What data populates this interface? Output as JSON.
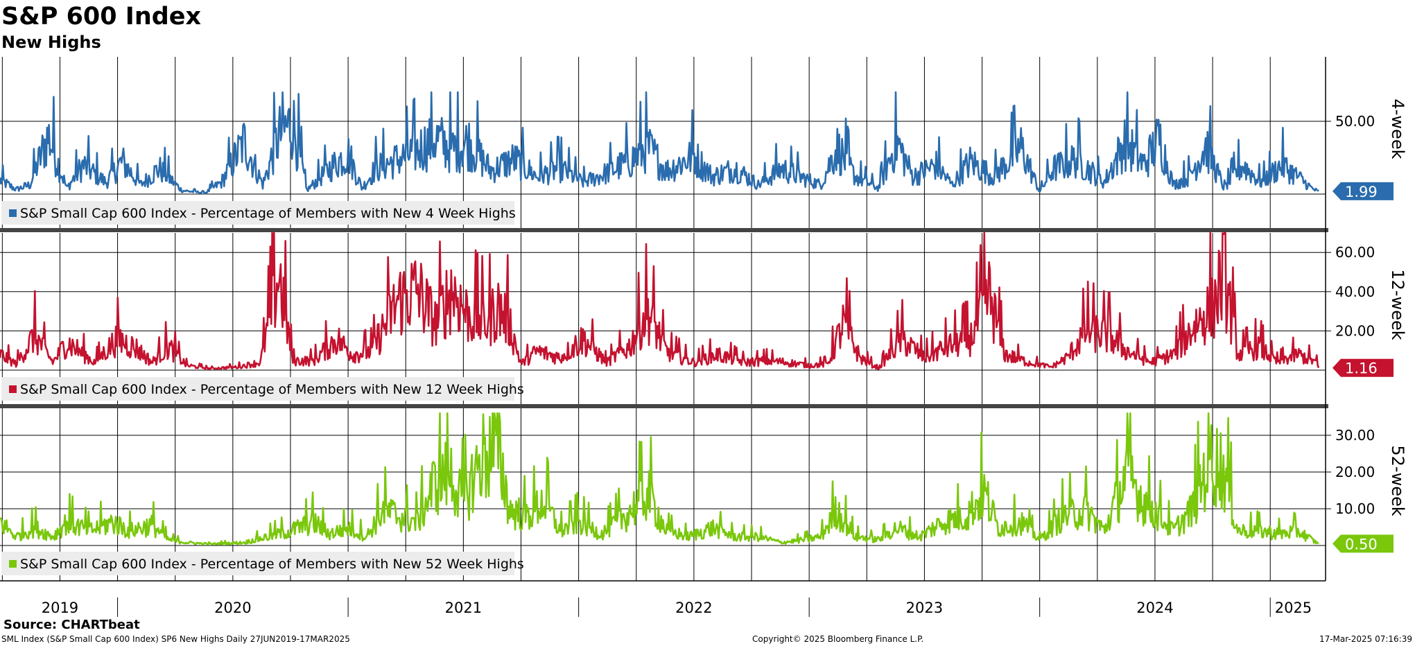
{
  "header": {
    "title": "S&P 600 Index",
    "subtitle": "New Highs"
  },
  "footer": {
    "source": "Source: CHARTbeat",
    "left": "SML Index (S&P Small Cap 600 Index) SP6 New Highs  Daily 27JUN2019-17MAR2025",
    "center": "Copyright© 2025 Bloomberg Finance L.P.",
    "right": "17-Mar-2025 07:16:39"
  },
  "chart_data": [
    {
      "type": "line",
      "panel_label": "4-week",
      "legend": "S&P Small Cap 600 Index - Percentage of Members with New 4 Week Highs",
      "color": "#2a6cad",
      "last_value": 1.99,
      "last_value_label": "1.99",
      "ylim": [
        0,
        70
      ],
      "ticks": [
        50
      ],
      "tick_labels": [
        "50.00"
      ],
      "x_range": [
        2019.49,
        2025.21
      ],
      "keypoints": [
        [
          2019.49,
          12
        ],
        [
          2019.56,
          4
        ],
        [
          2019.62,
          8
        ],
        [
          2019.7,
          50
        ],
        [
          2019.78,
          5
        ],
        [
          2019.85,
          25
        ],
        [
          2019.95,
          10
        ],
        [
          2020.02,
          28
        ],
        [
          2020.1,
          8
        ],
        [
          2020.18,
          22
        ],
        [
          2020.28,
          3
        ],
        [
          2020.38,
          1
        ],
        [
          2020.45,
          10
        ],
        [
          2020.55,
          45
        ],
        [
          2020.63,
          8
        ],
        [
          2020.7,
          50
        ],
        [
          2020.76,
          62
        ],
        [
          2020.82,
          3
        ],
        [
          2020.92,
          22
        ],
        [
          2021.0,
          35
        ],
        [
          2021.06,
          5
        ],
        [
          2021.12,
          22
        ],
        [
          2021.28,
          35
        ],
        [
          2021.38,
          48
        ],
        [
          2021.45,
          38
        ],
        [
          2021.52,
          45
        ],
        [
          2021.62,
          20
        ],
        [
          2021.72,
          30
        ],
        [
          2021.82,
          15
        ],
        [
          2021.92,
          22
        ],
        [
          2022.02,
          10
        ],
        [
          2022.12,
          18
        ],
        [
          2022.22,
          28
        ],
        [
          2022.3,
          40
        ],
        [
          2022.38,
          20
        ],
        [
          2022.5,
          33
        ],
        [
          2022.58,
          15
        ],
        [
          2022.68,
          22
        ],
        [
          2022.78,
          8
        ],
        [
          2022.88,
          22
        ],
        [
          2022.96,
          15
        ],
        [
          2023.05,
          8
        ],
        [
          2023.12,
          40
        ],
        [
          2023.2,
          15
        ],
        [
          2023.3,
          5
        ],
        [
          2023.38,
          45
        ],
        [
          2023.45,
          15
        ],
        [
          2023.55,
          25
        ],
        [
          2023.62,
          8
        ],
        [
          2023.7,
          28
        ],
        [
          2023.8,
          15
        ],
        [
          2023.92,
          40
        ],
        [
          2024.0,
          2
        ],
        [
          2024.06,
          22
        ],
        [
          2024.16,
          30
        ],
        [
          2024.28,
          10
        ],
        [
          2024.37,
          45
        ],
        [
          2024.45,
          25
        ],
        [
          2024.52,
          48
        ],
        [
          2024.58,
          8
        ],
        [
          2024.65,
          15
        ],
        [
          2024.72,
          42
        ],
        [
          2024.8,
          5
        ],
        [
          2024.88,
          25
        ],
        [
          2024.96,
          10
        ],
        [
          2025.05,
          25
        ],
        [
          2025.12,
          15
        ],
        [
          2025.18,
          5
        ],
        [
          2025.21,
          2
        ]
      ]
    },
    {
      "type": "line",
      "panel_label": "12-week",
      "legend": "S&P Small Cap 600 Index - Percentage of Members with New 12 Week Highs",
      "color": "#c4122f",
      "last_value": 1.16,
      "last_value_label": "1.16",
      "ylim": [
        0,
        70
      ],
      "ticks": [
        20,
        40,
        60
      ],
      "tick_labels": [
        "20.00",
        "40.00",
        "60.00"
      ],
      "x_range": [
        2019.49,
        2025.21
      ],
      "keypoints": [
        [
          2019.49,
          10
        ],
        [
          2019.56,
          4
        ],
        [
          2019.64,
          22
        ],
        [
          2019.72,
          5
        ],
        [
          2019.78,
          18
        ],
        [
          2019.9,
          5
        ],
        [
          2020.0,
          20
        ],
        [
          2020.08,
          14
        ],
        [
          2020.15,
          5
        ],
        [
          2020.22,
          15
        ],
        [
          2020.3,
          3
        ],
        [
          2020.4,
          1
        ],
        [
          2020.52,
          2
        ],
        [
          2020.62,
          5
        ],
        [
          2020.7,
          62
        ],
        [
          2020.76,
          6
        ],
        [
          2020.85,
          6
        ],
        [
          2020.95,
          20
        ],
        [
          2021.02,
          10
        ],
        [
          2021.1,
          12
        ],
        [
          2021.22,
          45
        ],
        [
          2021.3,
          51
        ],
        [
          2021.38,
          30
        ],
        [
          2021.45,
          52
        ],
        [
          2021.52,
          35
        ],
        [
          2021.6,
          30
        ],
        [
          2021.65,
          40
        ],
        [
          2021.7,
          30
        ],
        [
          2021.75,
          4
        ],
        [
          2021.82,
          12
        ],
        [
          2021.92,
          8
        ],
        [
          2022.02,
          20
        ],
        [
          2022.12,
          5
        ],
        [
          2022.22,
          15
        ],
        [
          2022.3,
          38
        ],
        [
          2022.38,
          12
        ],
        [
          2022.5,
          5
        ],
        [
          2022.6,
          10
        ],
        [
          2022.72,
          5
        ],
        [
          2022.82,
          6
        ],
        [
          2022.9,
          5
        ],
        [
          2023.0,
          3
        ],
        [
          2023.08,
          4
        ],
        [
          2023.15,
          30
        ],
        [
          2023.22,
          8
        ],
        [
          2023.3,
          1
        ],
        [
          2023.4,
          20
        ],
        [
          2023.5,
          8
        ],
        [
          2023.6,
          15
        ],
        [
          2023.7,
          20
        ],
        [
          2023.78,
          48
        ],
        [
          2023.85,
          10
        ],
        [
          2023.95,
          5
        ],
        [
          2024.05,
          2
        ],
        [
          2024.12,
          8
        ],
        [
          2024.2,
          25
        ],
        [
          2024.3,
          22
        ],
        [
          2024.38,
          12
        ],
        [
          2024.48,
          5
        ],
        [
          2024.58,
          10
        ],
        [
          2024.68,
          30
        ],
        [
          2024.75,
          40
        ],
        [
          2024.8,
          62
        ],
        [
          2024.86,
          10
        ],
        [
          2024.95,
          15
        ],
        [
          2025.03,
          5
        ],
        [
          2025.12,
          10
        ],
        [
          2025.2,
          5
        ],
        [
          2025.21,
          1
        ]
      ]
    },
    {
      "type": "line",
      "panel_label": "52-week",
      "legend": "S&P Small Cap 600 Index - Percentage of Members with New 52 Week Highs",
      "color": "#7ac70c",
      "last_value": 0.5,
      "last_value_label": "0.50",
      "ylim": [
        0,
        36
      ],
      "ticks": [
        10,
        20,
        30
      ],
      "tick_labels": [
        "10.00",
        "20.00",
        "30.00"
      ],
      "x_range": [
        2019.49,
        2025.21
      ],
      "keypoints": [
        [
          2019.49,
          8
        ],
        [
          2019.56,
          3
        ],
        [
          2019.64,
          6
        ],
        [
          2019.72,
          3
        ],
        [
          2019.78,
          8
        ],
        [
          2019.88,
          5
        ],
        [
          2019.98,
          8
        ],
        [
          2020.05,
          5
        ],
        [
          2020.15,
          7
        ],
        [
          2020.22,
          2
        ],
        [
          2020.3,
          1
        ],
        [
          2020.4,
          0.5
        ],
        [
          2020.55,
          1
        ],
        [
          2020.65,
          3
        ],
        [
          2020.75,
          5
        ],
        [
          2020.85,
          8
        ],
        [
          2020.92,
          4
        ],
        [
          2021.0,
          6
        ],
        [
          2021.08,
          3
        ],
        [
          2021.15,
          12
        ],
        [
          2021.22,
          10
        ],
        [
          2021.3,
          8
        ],
        [
          2021.38,
          22
        ],
        [
          2021.44,
          25
        ],
        [
          2021.5,
          15
        ],
        [
          2021.58,
          30
        ],
        [
          2021.65,
          34
        ],
        [
          2021.7,
          12
        ],
        [
          2021.78,
          10
        ],
        [
          2021.85,
          15
        ],
        [
          2021.92,
          5
        ],
        [
          2022.0,
          8
        ],
        [
          2022.1,
          4
        ],
        [
          2022.2,
          10
        ],
        [
          2022.3,
          18
        ],
        [
          2022.38,
          5
        ],
        [
          2022.48,
          3
        ],
        [
          2022.58,
          6
        ],
        [
          2022.68,
          3
        ],
        [
          2022.78,
          3
        ],
        [
          2022.88,
          1
        ],
        [
          2022.98,
          2
        ],
        [
          2023.05,
          3
        ],
        [
          2023.12,
          12
        ],
        [
          2023.2,
          3
        ],
        [
          2023.3,
          2
        ],
        [
          2023.38,
          6
        ],
        [
          2023.48,
          3
        ],
        [
          2023.58,
          8
        ],
        [
          2023.68,
          10
        ],
        [
          2023.76,
          18
        ],
        [
          2023.82,
          6
        ],
        [
          2023.92,
          8
        ],
        [
          2024.0,
          2
        ],
        [
          2024.1,
          10
        ],
        [
          2024.2,
          12
        ],
        [
          2024.28,
          5
        ],
        [
          2024.38,
          25
        ],
        [
          2024.45,
          15
        ],
        [
          2024.52,
          10
        ],
        [
          2024.58,
          5
        ],
        [
          2024.66,
          12
        ],
        [
          2024.74,
          30
        ],
        [
          2024.8,
          25
        ],
        [
          2024.86,
          5
        ],
        [
          2024.95,
          5
        ],
        [
          2025.05,
          4
        ],
        [
          2025.12,
          5
        ],
        [
          2025.18,
          2
        ],
        [
          2025.21,
          0.5
        ]
      ]
    }
  ],
  "x_axis": {
    "labels": [
      "2019",
      "2020",
      "2021",
      "2022",
      "2023",
      "2024",
      "2025"
    ],
    "label_centers": [
      2019.75,
      2020.5,
      2021.5,
      2022.5,
      2023.5,
      2024.5,
      2025.1
    ],
    "separators": [
      2020.0,
      2021.0,
      2022.0,
      2023.0,
      2024.0,
      2025.0
    ],
    "min": 2019.49,
    "max": 2025.24
  }
}
